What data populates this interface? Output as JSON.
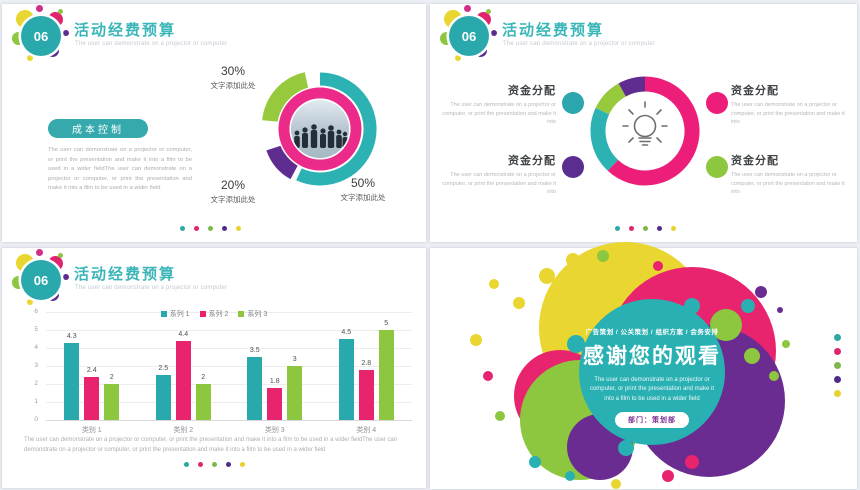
{
  "palette": {
    "teal": "#2aa9ac",
    "pink": "#e8246f",
    "green": "#8dc63f",
    "purple": "#5b2d90",
    "yellow": "#e9d630",
    "title_teal": "#3bb6b8"
  },
  "slide1": {
    "badge": "06",
    "title": "活动经费预算",
    "subtitle": "The user can demonstrate on a projector or computer",
    "button_label": "成本控制",
    "body": "The user can demonstrate on a projector or computer, or print the presentation and make it into a film to be used in a wider fieldThe user can demonstrate on a projector or computer, or print the presentation and make it into a film to be used in a wider field",
    "labels": {
      "seg30": {
        "pct": "30%",
        "text": "文字添加此处"
      },
      "seg20": {
        "pct": "20%",
        "text": "文字添加此处"
      },
      "seg50": {
        "pct": "50%",
        "text": "文字添加此处"
      }
    }
  },
  "slide2": {
    "badge": "06",
    "title": "活动经费预算",
    "subtitle": "The user can demonstrate on a projector or computer",
    "items": [
      {
        "heading": "资金分配",
        "text": "The user can demonstrate on a projector or computer, or print the presentation and make it into"
      },
      {
        "heading": "资金分配",
        "text": "The user can demonstrate on a projector or computer, or print the presentation and make it into"
      },
      {
        "heading": "资金分配",
        "text": "The user can demonstrate on a projector or computer, or print the presentation and make it into"
      },
      {
        "heading": "资金分配",
        "text": "The user can demonstrate on a projector or computer, or print the presentation and make it into"
      }
    ]
  },
  "slide3": {
    "badge": "06",
    "title": "活动经费预算",
    "subtitle": "The user can demonstrate on a projector or computer",
    "body": "The user can demonstrate on a projector or computer, or print the presentation and make it into a film to be used in a wider fieldThe user can demonstrate on a projector or computer, or print the presentation and make it into a film to be used in a wider field"
  },
  "slide4": {
    "tagline": "广告策划 / 公关策划 / 组织方案 / 会务安排",
    "title": "感谢您的观看",
    "body": "The user can demonstrate on a projector or computer, or print the presentation and make it into a film to be used in a wider field",
    "department": "部门：策划部"
  },
  "chart_data": [
    {
      "type": "pie",
      "slide": 1,
      "labels": [
        "50% 文字添加此处",
        "30% 文字添加此处",
        "20% 文字添加此处"
      ],
      "values": [
        50,
        30,
        20
      ],
      "colors": [
        "#2db2b4",
        "#97c93d",
        "#5f2c90"
      ],
      "inner_ring_color": "#ec2a8a",
      "center": "photo of people silhouettes"
    },
    {
      "type": "pie",
      "slide": 2,
      "labels": [
        "资金分配",
        "资金分配",
        "资金分配",
        "资金分配"
      ],
      "values": [
        62,
        20,
        10,
        8
      ],
      "values_estimated": true,
      "colors": [
        "#ec1e79",
        "#2db2b4",
        "#97c93d",
        "#5f2c90"
      ],
      "center": "lightbulb icon"
    },
    {
      "type": "bar",
      "slide": 3,
      "categories": [
        "类别 1",
        "类别 2",
        "类别 3",
        "类别 4"
      ],
      "series": [
        {
          "name": "系列 1",
          "values": [
            4.3,
            2.5,
            3.5,
            4.5
          ],
          "color": "#2aa9ac"
        },
        {
          "name": "系列 2",
          "values": [
            2.4,
            4.4,
            1.8,
            2.8
          ],
          "color": "#e8246f"
        },
        {
          "name": "系列 3",
          "values": [
            2,
            2,
            3,
            5
          ],
          "color": "#8dc63f"
        }
      ],
      "ylim": [
        0,
        6
      ],
      "yticks": [
        0,
        1,
        2,
        3,
        4,
        5,
        6
      ],
      "grid": true,
      "legend_position": "top"
    }
  ]
}
